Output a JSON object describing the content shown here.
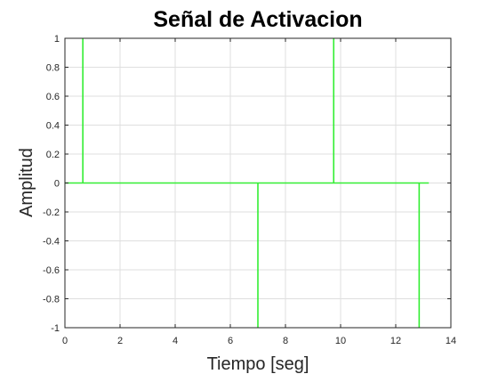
{
  "chart_data": {
    "type": "line",
    "title": "Señal de Activacion",
    "xlabel": "Tiempo [seg]",
    "ylabel": "Amplitud",
    "xlim": [
      0,
      14
    ],
    "ylim": [
      -1,
      1
    ],
    "x_ticks": [
      "0",
      "2",
      "4",
      "6",
      "8",
      "10",
      "12",
      "14"
    ],
    "y_ticks": [
      "1",
      "0.8",
      "0.6",
      "0.4",
      "0.2",
      "0",
      "-0.2",
      "-0.4",
      "-0.6",
      "-0.8",
      "-1"
    ],
    "grid": true,
    "legend": "none",
    "series": [
      {
        "color": "#33ee33",
        "points": [
          [
            0,
            0
          ],
          [
            0.65,
            0
          ],
          [
            0.65,
            1
          ],
          [
            0.65,
            0
          ],
          [
            7.0,
            0
          ],
          [
            7.0,
            -1
          ],
          [
            7.0,
            0
          ],
          [
            9.75,
            0
          ],
          [
            9.75,
            1
          ],
          [
            9.75,
            0
          ],
          [
            12.85,
            0
          ],
          [
            12.85,
            -1
          ],
          [
            12.85,
            0
          ],
          [
            13.2,
            0
          ]
        ]
      }
    ]
  }
}
